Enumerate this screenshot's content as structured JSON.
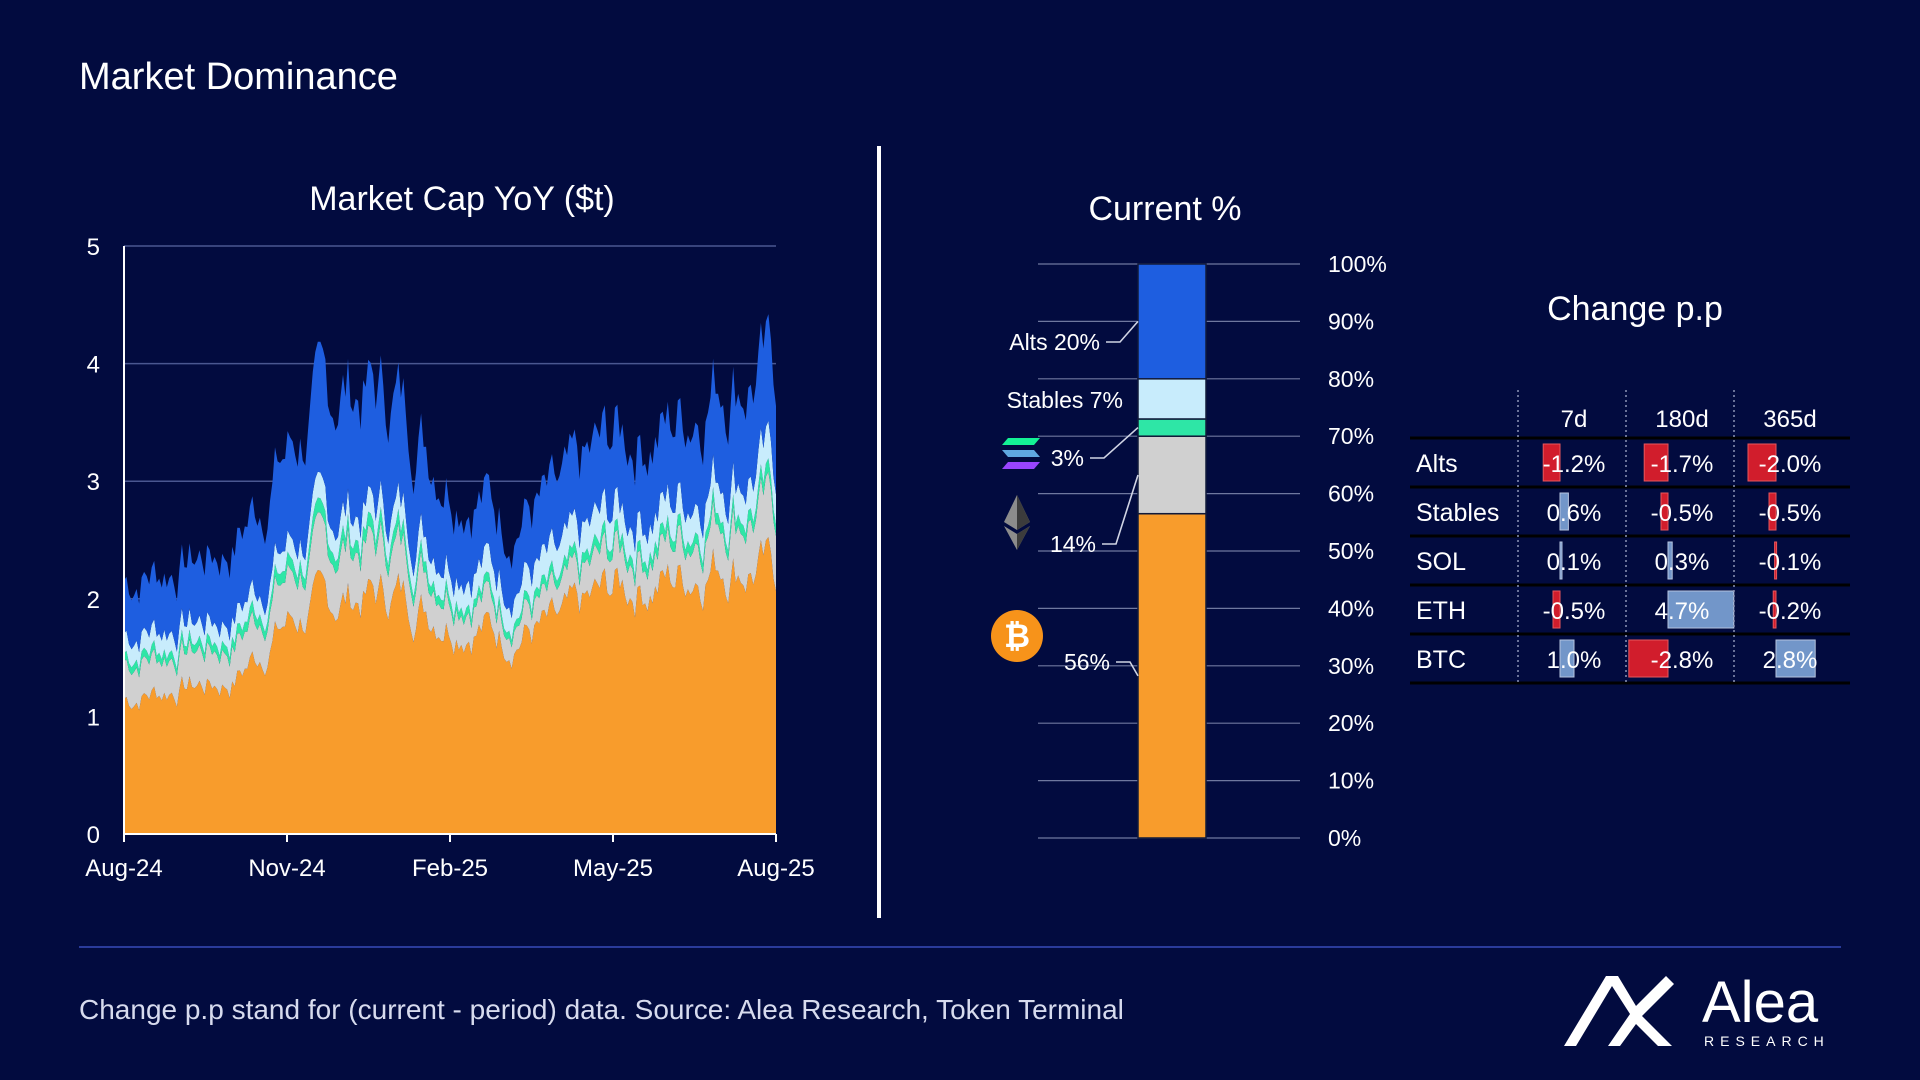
{
  "page": {
    "title": "Market Dominance",
    "footer": "Change p.p stand for (current - period) data. Source: Alea Research, Token Terminal",
    "logo": {
      "name": "Alea",
      "sub": "RESEARCH"
    }
  },
  "colors": {
    "btc": "#f89c2c",
    "eth": "#d0d0d0",
    "sol": "#2ee6a6",
    "stables": "#c8ecfc",
    "alts": "#1e5ee0",
    "neg": "#e8202a",
    "pos": "#7fa6d8"
  },
  "chart_data": [
    {
      "type": "area",
      "title": "Market Cap YoY ($t)",
      "ylim": [
        0,
        5
      ],
      "yticks": [
        "0",
        "1",
        "2",
        "3",
        "4",
        "5"
      ],
      "xticks": [
        "Aug-24",
        "Nov-24",
        "Feb-25",
        "May-25",
        "Aug-25"
      ],
      "x": [
        "Aug-24",
        "Sep-24",
        "Oct-24",
        "Nov-24",
        "Dec-24",
        "Jan-25",
        "Feb-25",
        "Mar-25",
        "Apr-25",
        "May-25",
        "Jun-25",
        "Jul-25",
        "Aug-25"
      ],
      "series": [
        {
          "name": "BTC",
          "values": [
            1.15,
            1.25,
            1.3,
            1.8,
            2.0,
            2.05,
            1.85,
            1.7,
            1.75,
            2.1,
            2.15,
            2.35,
            2.2
          ]
        },
        {
          "name": "ETH",
          "values": [
            0.32,
            0.3,
            0.3,
            0.38,
            0.45,
            0.4,
            0.3,
            0.22,
            0.2,
            0.3,
            0.3,
            0.42,
            0.5
          ]
        },
        {
          "name": "SOL",
          "values": [
            0.07,
            0.07,
            0.08,
            0.1,
            0.11,
            0.11,
            0.08,
            0.07,
            0.07,
            0.09,
            0.09,
            0.1,
            0.1
          ]
        },
        {
          "name": "Stables",
          "values": [
            0.17,
            0.17,
            0.17,
            0.17,
            0.2,
            0.21,
            0.22,
            0.23,
            0.24,
            0.25,
            0.25,
            0.27,
            0.28
          ]
        },
        {
          "name": "Alts",
          "values": [
            0.45,
            0.5,
            0.6,
            0.8,
            1.05,
            0.95,
            0.65,
            0.5,
            0.55,
            0.65,
            0.65,
            0.8,
            0.8
          ]
        }
      ]
    },
    {
      "type": "bar",
      "title": "Current %",
      "stacked": true,
      "ylim": [
        0,
        100
      ],
      "yticks": [
        "0%",
        "10%",
        "20%",
        "30%",
        "40%",
        "50%",
        "60%",
        "70%",
        "80%",
        "90%",
        "100%"
      ],
      "categories": [
        "Current"
      ],
      "series": [
        {
          "name": "BTC",
          "values": [
            56.5
          ],
          "label": "56%"
        },
        {
          "name": "ETH",
          "values": [
            13.5
          ],
          "label": "14%"
        },
        {
          "name": "SOL",
          "values": [
            3
          ],
          "label": "3%"
        },
        {
          "name": "Stables",
          "values": [
            7
          ],
          "label": "Stables 7%"
        },
        {
          "name": "Alts",
          "values": [
            20
          ],
          "label": "Alts 20%"
        }
      ]
    },
    {
      "type": "table",
      "title": "Change p.p",
      "columns": [
        "7d",
        "180d",
        "365d"
      ],
      "rows": [
        {
          "name": "Alts",
          "values": [
            -1.2,
            -1.7,
            -2.0
          ],
          "labels": [
            "-1.2%",
            "-1.7%",
            "-2.0%"
          ]
        },
        {
          "name": "Stables",
          "values": [
            0.6,
            -0.5,
            -0.5
          ],
          "labels": [
            "0.6%",
            "-0.5%",
            "-0.5%"
          ]
        },
        {
          "name": "SOL",
          "values": [
            0.1,
            0.3,
            -0.1
          ],
          "labels": [
            "0.1%",
            "0.3%",
            "-0.1%"
          ]
        },
        {
          "name": "ETH",
          "values": [
            -0.5,
            4.7,
            -0.2
          ],
          "labels": [
            "-0.5%",
            "4.7%",
            "-0.2%"
          ]
        },
        {
          "name": "BTC",
          "values": [
            1.0,
            -2.8,
            2.8
          ],
          "labels": [
            "1.0%",
            "-2.8%",
            "2.8%"
          ]
        }
      ]
    }
  ]
}
